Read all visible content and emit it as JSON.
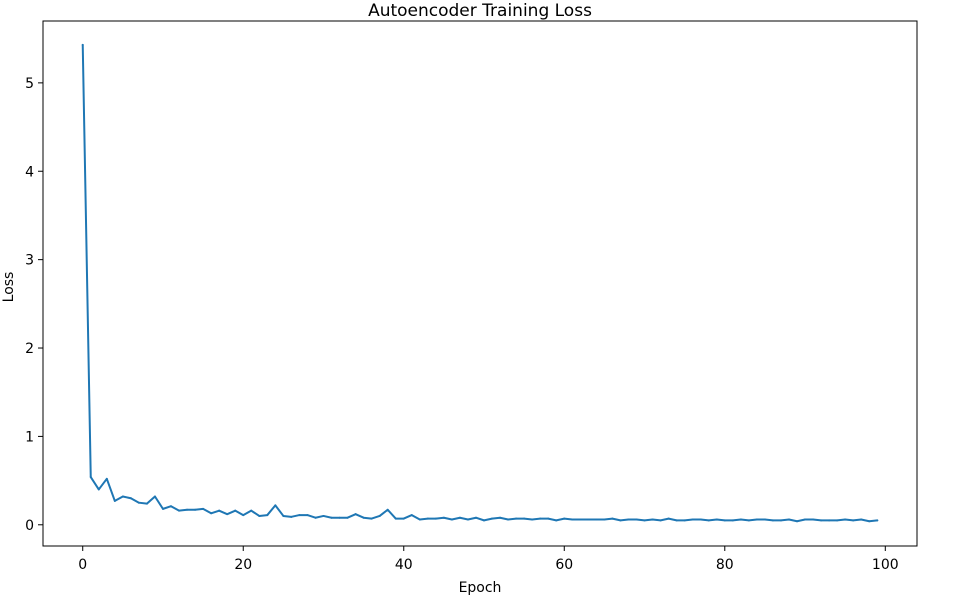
{
  "chart_data": {
    "type": "line",
    "title": "Autoencoder Training Loss",
    "xlabel": "Epoch",
    "ylabel": "Loss",
    "xlim": [
      -4.95,
      103.95
    ],
    "ylim": [
      -0.24,
      5.7
    ],
    "xticks": [
      0,
      20,
      40,
      60,
      80,
      100
    ],
    "yticks": [
      0,
      1,
      2,
      3,
      4,
      5
    ],
    "grid": false,
    "color": "#1f77b4",
    "series": [
      {
        "x": [
          0,
          1,
          2,
          3,
          4,
          5,
          6,
          7,
          8,
          9,
          10,
          11,
          12,
          13,
          14,
          15,
          16,
          17,
          18,
          19,
          20,
          21,
          22,
          23,
          24,
          25,
          26,
          27,
          28,
          29,
          30,
          31,
          32,
          33,
          34,
          35,
          36,
          37,
          38,
          39,
          40,
          41,
          42,
          43,
          44,
          45,
          46,
          47,
          48,
          49,
          50,
          51,
          52,
          53,
          54,
          55,
          56,
          57,
          58,
          59,
          60,
          61,
          62,
          63,
          64,
          65,
          66,
          67,
          68,
          69,
          70,
          71,
          72,
          73,
          74,
          75,
          76,
          77,
          78,
          79,
          80,
          81,
          82,
          83,
          84,
          85,
          86,
          87,
          88,
          89,
          90,
          91,
          92,
          93,
          94,
          95,
          96,
          97,
          98,
          99
        ],
        "values": [
          5.43,
          0.54,
          0.4,
          0.52,
          0.27,
          0.32,
          0.3,
          0.25,
          0.24,
          0.32,
          0.18,
          0.21,
          0.16,
          0.17,
          0.17,
          0.18,
          0.13,
          0.16,
          0.12,
          0.16,
          0.11,
          0.16,
          0.1,
          0.11,
          0.22,
          0.1,
          0.09,
          0.11,
          0.11,
          0.08,
          0.1,
          0.08,
          0.08,
          0.08,
          0.12,
          0.08,
          0.07,
          0.1,
          0.17,
          0.07,
          0.07,
          0.11,
          0.06,
          0.07,
          0.07,
          0.08,
          0.06,
          0.08,
          0.06,
          0.08,
          0.05,
          0.07,
          0.08,
          0.06,
          0.07,
          0.07,
          0.06,
          0.07,
          0.07,
          0.05,
          0.07,
          0.06,
          0.06,
          0.06,
          0.06,
          0.06,
          0.07,
          0.05,
          0.06,
          0.06,
          0.05,
          0.06,
          0.05,
          0.07,
          0.05,
          0.05,
          0.06,
          0.06,
          0.05,
          0.06,
          0.05,
          0.05,
          0.06,
          0.05,
          0.06,
          0.06,
          0.05,
          0.05,
          0.06,
          0.04,
          0.06,
          0.06,
          0.05,
          0.05,
          0.05,
          0.06,
          0.05,
          0.06,
          0.04,
          0.05
        ]
      }
    ]
  }
}
